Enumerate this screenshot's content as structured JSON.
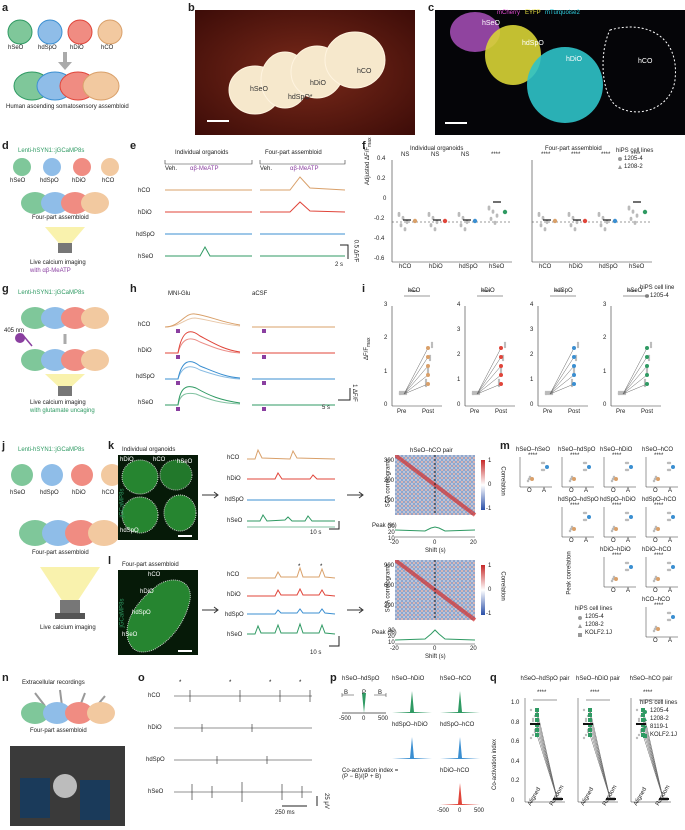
{
  "colors": {
    "hCO": "#d9a06a",
    "hDiO": "#e0453a",
    "hdSpO": "#3b8fd1",
    "hSeO": "#2f9a63",
    "purple": "#8a3fa0",
    "gray": "#999999"
  },
  "a": {
    "label": "a",
    "organoids": [
      "hSeO",
      "hdSpO",
      "hDiO",
      "hCO"
    ],
    "caption": "Human ascending somatosensory assembloid"
  },
  "b": {
    "label": "b",
    "labels": [
      "hSeO",
      "hdSpO*",
      "hDiO",
      "hCO"
    ]
  },
  "c": {
    "label": "c",
    "legend": [
      "mCherry",
      "EYFP",
      "mTurquoise2"
    ],
    "labels": [
      "hSeO",
      "hdSpO",
      "hDiO",
      "hCO"
    ]
  },
  "d": {
    "label": "d",
    "virus": "Lenti-hSYN1::jGCaMP8s",
    "organoids": [
      "hSeO",
      "hdSpO",
      "hDiO",
      "hCO"
    ],
    "assembloid": "Four-part assembloid",
    "caption1": "Live calcium imaging",
    "caption2": "with αβ-MeATP"
  },
  "e": {
    "label": "e",
    "header1": "Individual organoids",
    "header2": "Four-part assembloid",
    "veh": "Veh.",
    "drug": "αβ-MeATP",
    "rows": [
      "hCO",
      "hDiO",
      "hdSpO",
      "hSeO"
    ],
    "scale": "0.5 ΔF/F",
    "time": "2 s"
  },
  "f": {
    "label": "f",
    "title1": "Individual organoids",
    "title2": "Four-part assembloid",
    "ylabel": "Adjusted ΔF/F",
    "ylabel_sub": "max",
    "sig1": [
      "NS",
      "NS",
      "NS",
      "****"
    ],
    "sig2": [
      "****",
      "****",
      "****",
      "****"
    ],
    "categories": [
      "hCO",
      "hDiO",
      "hdSpO",
      "hSeO"
    ],
    "yticks": [
      "0.4",
      "0.2",
      "0",
      "-0.2",
      "-0.4",
      "-0.6"
    ],
    "legend_title": "hiPS cell lines",
    "legend": [
      "1205-4",
      "1208-2"
    ]
  },
  "g": {
    "label": "g",
    "virus": "Lenti-hSYN1::jGCaMP8s",
    "laser": "405 nm",
    "caption1": "Live calcium imaging",
    "caption2": "with glutamate uncaging"
  },
  "h": {
    "label": "h",
    "header1": "MNI-Glu",
    "header2": "aCSF",
    "rows": [
      "hCO",
      "hDiO",
      "hdSpO",
      "hSeO"
    ],
    "time": "5 s",
    "scale": "1 ΔF/F"
  },
  "i": {
    "label": "i",
    "titles": [
      "hCO",
      "hDiO",
      "hdSpO",
      "hSeO"
    ],
    "sig": "****",
    "ylabel": "ΔF/F",
    "ylabel_sub": "max",
    "xticks": [
      "Pre",
      "Post"
    ],
    "legend_title": "hiPS cell line",
    "legend": "1205-4",
    "yticks_hCO": [
      "3",
      "2",
      "1",
      "0"
    ],
    "yticks_hDiO": [
      "4",
      "3",
      "2",
      "1",
      "0"
    ],
    "yticks_hdSpO": [
      "4",
      "3",
      "2",
      "1",
      "0"
    ],
    "yticks_hSeO": [
      "3",
      "2",
      "1",
      "0"
    ]
  },
  "j": {
    "label": "j",
    "virus": "Lenti-hSYN1::jGCaMP8s",
    "organoids": [
      "hSeO",
      "hdSpO",
      "hDiO",
      "hCO"
    ],
    "assembloid": "Four-part assembloid",
    "caption": "Live calcium imaging"
  },
  "k": {
    "label": "k",
    "header": "Individual organoids",
    "img_labels": [
      "hDiO",
      "hCO",
      "hSeO",
      "hdSpO"
    ],
    "side": "jGCaMP8s",
    "rows": [
      "hCO",
      "hDiO",
      "hdSpO",
      "hSeO"
    ],
    "time": "10 s",
    "scale": "0.5 ΔF/F",
    "pair": "hSeO–hCO pair",
    "yaxis": "SCA correlograms",
    "yticks": [
      "300",
      "200",
      "100"
    ],
    "peak": "Peak (%)",
    "pticks": [
      "30",
      "20",
      "10"
    ],
    "shift": "Shift (s)",
    "xticks": [
      "-20",
      "0",
      "20"
    ],
    "cbar": "Correlation",
    "cticks": [
      "1",
      "0",
      "-1"
    ]
  },
  "l": {
    "label": "l",
    "header": "Four-part assembloid",
    "img_labels": [
      "hCO",
      "hDiO",
      "hdSpO",
      "hSeO"
    ],
    "side": "jGCaMP8s",
    "rows": [
      "hCO",
      "hDiO",
      "hdSpO",
      "hSeO"
    ],
    "time": "10 s",
    "scale": "1 ΔF/F",
    "yaxis": "SCA correlograms",
    "yticks": [
      "900",
      "600",
      "300"
    ],
    "peak": "Peak (%)",
    "pticks": [
      "30",
      "20",
      "10"
    ],
    "shift": "Shift (s)",
    "xticks": [
      "-20",
      "0",
      "20"
    ],
    "cbar": "Correlation",
    "cticks": [
      "1",
      "0",
      "-1"
    ]
  },
  "m": {
    "label": "m",
    "pairs": [
      "hSeO–hSeO",
      "hSeO–hdSpO",
      "hSeO–hDiO",
      "hSeO–hCO",
      "hdSpO–hdSpO",
      "hdSpO–hDiO",
      "hdSpO–hCO",
      "hDiO–hDiO",
      "hDiO–hCO",
      "hCO–hCO"
    ],
    "sig": "****",
    "ylabel": "Peak correlation",
    "xticks": [
      "O",
      "A"
    ],
    "legend_title": "hiPS cell lines",
    "legend": [
      "1205-4",
      "1208-2",
      "KOLF2.1J"
    ]
  },
  "n": {
    "label": "n",
    "title": "Extracellular recordings",
    "assembloid": "Four-part assembloid"
  },
  "o": {
    "label": "o",
    "rows": [
      "hCO",
      "hDiO",
      "hdSpO",
      "hSeO"
    ],
    "time": "250 ms",
    "scale": "25 μV"
  },
  "p": {
    "label": "p",
    "pairs": [
      "hSeO–hdSpO",
      "hSeO–hDiO",
      "hSeO–hCO",
      "hdSpO–hDiO",
      "hdSpO–hCO",
      "hDiO–hCO"
    ],
    "B": "B",
    "P": "P",
    "xticks": [
      "-500",
      "0",
      "500"
    ],
    "formula": "Co-activation index = (P − B)/(P + B)"
  },
  "q": {
    "label": "q",
    "titles": [
      "hSeO–hdSpO pair",
      "hSeO–hDiO pair",
      "hSeO–hCO pair"
    ],
    "sig": "****",
    "ylabel": "Co-activation index",
    "yticks": [
      "1.0",
      "0.8",
      "0.6",
      "0.4",
      "0.2",
      "0"
    ],
    "xticks": [
      "Aligned",
      "Random"
    ],
    "legend_title": "hiPS cell lines",
    "legend": [
      "1205-4",
      "1208-2",
      "8119-1",
      "KOLF2.1J"
    ]
  }
}
